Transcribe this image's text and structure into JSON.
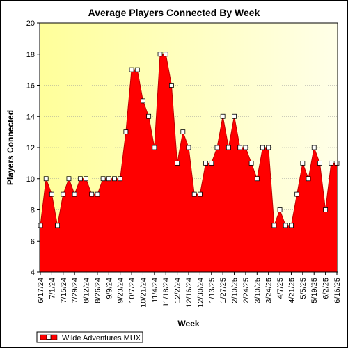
{
  "chart_data": {
    "type": "area",
    "title": "Average Players Connected By Week",
    "xlabel": "Week",
    "ylabel": "Players Connected",
    "ylim": [
      4,
      20
    ],
    "yticks": [
      4,
      6,
      8,
      10,
      12,
      14,
      16,
      18,
      20
    ],
    "xtick_labels": [
      "6/17/24",
      "7/1/24",
      "7/15/24",
      "7/29/24",
      "8/12/24",
      "8/26/24",
      "9/9/24",
      "9/23/24",
      "10/7/24",
      "10/21/24",
      "11/4/24",
      "11/18/24",
      "12/2/24",
      "12/16/24",
      "12/30/24",
      "1/13/25",
      "1/27/25",
      "2/10/25",
      "2/24/25",
      "3/10/25",
      "3/24/25",
      "4/7/25",
      "4/21/25",
      "5/5/25",
      "5/19/25",
      "6/2/25",
      "6/16/25"
    ],
    "grid": true,
    "legend_position": "bottom-left",
    "series": [
      {
        "name": "Wilde Adventures MUX",
        "color": "#ff0000",
        "values": [
          7,
          10,
          9,
          7,
          9,
          10,
          9,
          10,
          10,
          9,
          9,
          10,
          10,
          10,
          10,
          13,
          17,
          17,
          15,
          14,
          12,
          18,
          18,
          16,
          11,
          13,
          12,
          9,
          9,
          11,
          11,
          12,
          14,
          12,
          14,
          12,
          12,
          11,
          10,
          12,
          12,
          7,
          8,
          7,
          7,
          9,
          11,
          10,
          12,
          11,
          8,
          11,
          11
        ]
      }
    ]
  }
}
